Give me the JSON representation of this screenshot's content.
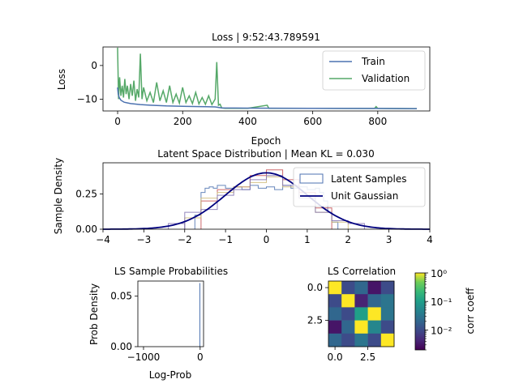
{
  "chart_data": [
    {
      "type": "line",
      "title": "Loss | 9:52:43.789591",
      "xlabel": "Epoch",
      "ylabel": "Loss",
      "xlim": [
        -45,
        960
      ],
      "ylim": [
        -13.5,
        5.5
      ],
      "xticks": [
        0,
        200,
        400,
        600,
        800
      ],
      "yticks": [
        0,
        -10
      ],
      "xtick_labels": [
        "0",
        "200",
        "400",
        "600",
        "800"
      ],
      "ytick_labels": [
        "0",
        "−10"
      ],
      "legend_position": "top-right",
      "series": [
        {
          "name": "Train",
          "color": "#4c72b0",
          "x": [
            0,
            2,
            5,
            10,
            20,
            40,
            70,
            100,
            150,
            200,
            250,
            300,
            320,
            400,
            600,
            800,
            920
          ],
          "y": [
            -6.5,
            -8.5,
            -9.5,
            -10.3,
            -10.9,
            -11.3,
            -11.6,
            -11.8,
            -12.0,
            -12.1,
            -12.2,
            -12.3,
            -12.6,
            -12.65,
            -12.7,
            -12.75,
            -12.8
          ]
        },
        {
          "name": "Validation",
          "color": "#55a868",
          "x": [
            0,
            3,
            6,
            10,
            14,
            18,
            22,
            26,
            30,
            35,
            40,
            45,
            50,
            55,
            60,
            65,
            70,
            75,
            80,
            90,
            100,
            110,
            120,
            130,
            140,
            150,
            160,
            170,
            180,
            190,
            200,
            210,
            220,
            230,
            240,
            250,
            260,
            270,
            280,
            290,
            300,
            305,
            310,
            315,
            320,
            330,
            400,
            460,
            465,
            500,
            600,
            700,
            790,
            795,
            800,
            920
          ],
          "y": [
            5.3,
            -10.0,
            -3.5,
            -9.0,
            -6.0,
            -9.5,
            -4.0,
            -8.5,
            -6.0,
            -10.0,
            -5.5,
            -9.0,
            -4.5,
            -10.5,
            -7.0,
            -9.5,
            3.5,
            -10.0,
            -6.5,
            -10.5,
            -8.0,
            -11.0,
            -5.0,
            -10.5,
            -7.5,
            -11.0,
            -6.0,
            -11.0,
            -8.5,
            -11.2,
            -6.5,
            -11.0,
            -9.0,
            -11.3,
            -8.0,
            -11.4,
            -9.5,
            -11.5,
            -9.0,
            -11.6,
            -10.0,
            1.0,
            -11.8,
            -11.5,
            -12.6,
            -12.7,
            -12.7,
            -11.8,
            -12.7,
            -12.7,
            -12.7,
            -12.75,
            -12.75,
            -12.2,
            -12.75,
            -12.8
          ]
        }
      ]
    },
    {
      "type": "area",
      "title": "Latent Space Distribution | Mean KL = 0.030",
      "xlabel": "",
      "ylabel": "Sample Density",
      "xlim": [
        -4,
        4
      ],
      "ylim": [
        0,
        0.47
      ],
      "xticks": [
        -4,
        -3,
        -2,
        -1,
        0,
        1,
        2,
        3,
        4
      ],
      "yticks": [
        0,
        0.25
      ],
      "xtick_labels": [
        "−4",
        "−3",
        "−2",
        "−1",
        "0",
        "1",
        "2",
        "3",
        "4"
      ],
      "ytick_labels": [
        "0.00",
        "0.25"
      ],
      "legend_position": "top-right",
      "legend": [
        "Latent Samples",
        "Unit Gaussian"
      ],
      "gaussian_color": "#00007f",
      "histograms": [
        {
          "color": "#4c72b0",
          "edges": [
            -1.75,
            -1.6,
            -1.5,
            -1.4,
            -1.3,
            -1.2,
            -1.0,
            -0.8,
            -0.6,
            -0.4,
            -0.2,
            0,
            0.2,
            0.4,
            0.6,
            0.8,
            1.0,
            1.2,
            1.3,
            1.4,
            1.5,
            1.6,
            1.75
          ],
          "density": [
            0.1,
            0.26,
            0.29,
            0.3,
            0.29,
            0.31,
            0.29,
            0.3,
            0.28,
            0.31,
            0.29,
            0.3,
            0.28,
            0.31,
            0.29,
            0.3,
            0.28,
            0.29,
            0.26,
            0.2,
            0.12,
            0.05
          ]
        },
        {
          "color": "#c44e52",
          "edges": [
            -1.6,
            -1.2,
            -0.8,
            -0.4,
            0,
            0.4,
            0.8,
            1.2,
            1.6
          ],
          "density": [
            0.2,
            0.28,
            0.3,
            0.38,
            0.42,
            0.35,
            0.26,
            0.15
          ]
        },
        {
          "color": "#ccb974",
          "edges": [
            -2.0,
            -1.6,
            -1.2,
            -0.8,
            -0.4,
            0,
            0.4,
            0.8,
            1.2,
            1.6,
            2.0
          ],
          "density": [
            0.08,
            0.22,
            0.26,
            0.3,
            0.33,
            0.37,
            0.3,
            0.24,
            0.12,
            0.05
          ]
        },
        {
          "color": "#8172b2",
          "edges": [
            -2.0,
            -1.6,
            -1.2,
            -0.8,
            -0.4,
            0,
            0.4,
            0.8,
            1.2,
            1.6,
            2.0,
            2.4
          ],
          "density": [
            0.12,
            0.14,
            0.24,
            0.28,
            0.35,
            0.38,
            0.31,
            0.22,
            0.12,
            0.06,
            0.04
          ]
        },
        {
          "color": "#8172b2",
          "edges": [
            -2.4,
            -2.0
          ],
          "density": [
            0.04
          ]
        }
      ]
    },
    {
      "type": "bar",
      "title": "LS Sample Probabilities",
      "xlabel": "Log-Prob",
      "ylabel": "Prob Density",
      "xlim": [
        -1100,
        60
      ],
      "ylim": [
        0,
        0.065
      ],
      "xticks": [
        -1000,
        0
      ],
      "yticks": [
        0,
        0.05
      ],
      "xtick_labels": [
        "−1000",
        "0"
      ],
      "ytick_labels": [
        "0.00",
        "0.05"
      ],
      "bars": [
        {
          "x": -5,
          "value": 0.063
        }
      ],
      "color": "#4c72b0"
    },
    {
      "type": "heatmap",
      "title": "LS Correlation",
      "xticks": [
        0,
        2.5
      ],
      "yticks": [
        0,
        2.5
      ],
      "xtick_labels": [
        "0.0",
        "2.5"
      ],
      "ytick_labels": [
        "0.0",
        "2.5"
      ],
      "colorbar_label": "corr coeff",
      "colorbar_ticks": [
        "10⁰",
        "10⁻¹",
        "10⁻²"
      ],
      "matrix": [
        [
          1.0,
          0.01,
          0.02,
          0.003,
          0.01
        ],
        [
          0.01,
          1.0,
          0.004,
          0.02,
          0.03
        ],
        [
          0.02,
          0.01,
          0.1,
          1.0,
          0.03
        ],
        [
          0.003,
          0.02,
          1.0,
          0.05,
          0.01
        ],
        [
          0.02,
          0.01,
          0.03,
          0.01,
          1.0
        ]
      ]
    }
  ]
}
